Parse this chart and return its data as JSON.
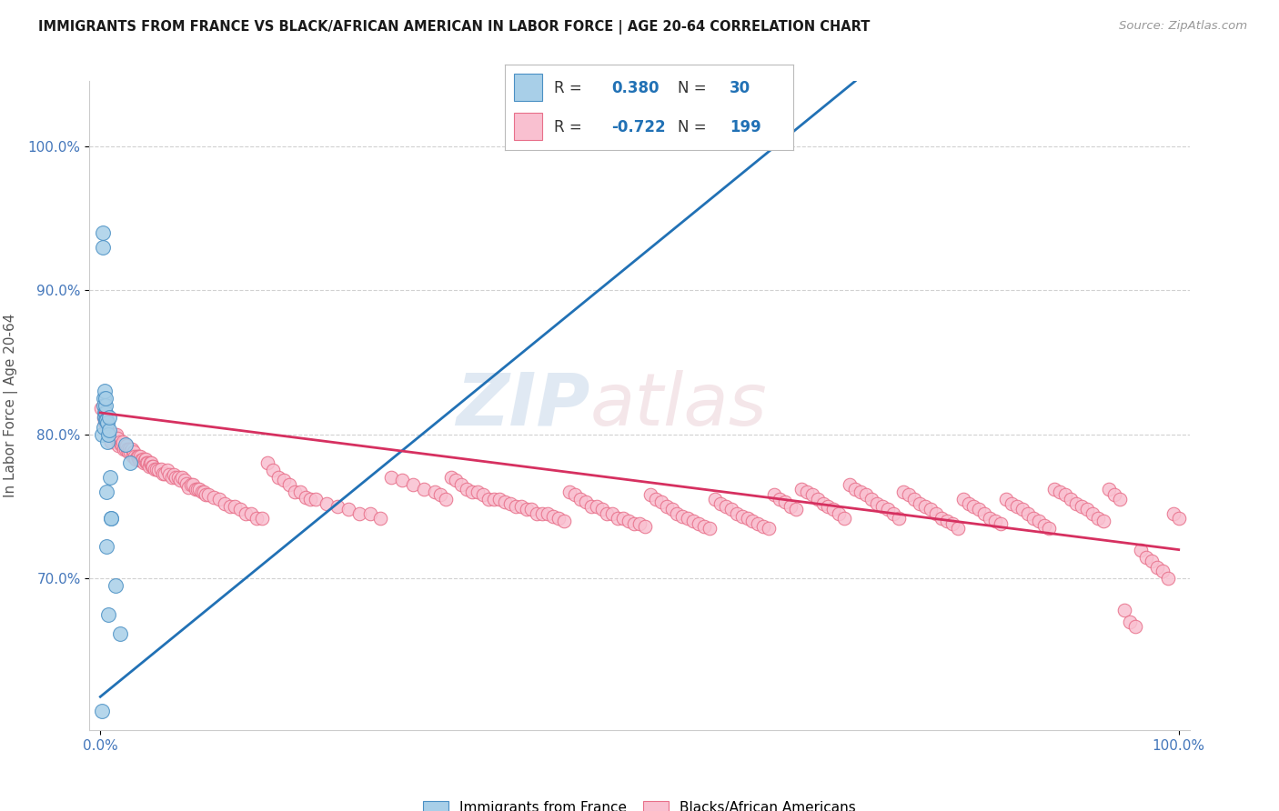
{
  "title": "IMMIGRANTS FROM FRANCE VS BLACK/AFRICAN AMERICAN IN LABOR FORCE | AGE 20-64 CORRELATION CHART",
  "source": "Source: ZipAtlas.com",
  "ylabel": "In Labor Force | Age 20-64",
  "xlim": [
    -0.01,
    1.01
  ],
  "ylim": [
    0.595,
    1.045
  ],
  "yticks": [
    0.7,
    0.8,
    0.9,
    1.0
  ],
  "ytick_labels": [
    "70.0%",
    "80.0%",
    "90.0%",
    "100.0%"
  ],
  "xticks": [
    0.0,
    1.0
  ],
  "xtick_labels": [
    "0.0%",
    "100.0%"
  ],
  "blue_R": 0.38,
  "blue_N": 30,
  "pink_R": -0.722,
  "pink_N": 199,
  "blue_color": "#a8cfe8",
  "pink_color": "#f9c0d0",
  "blue_edge_color": "#4a90c4",
  "pink_edge_color": "#e8708a",
  "blue_line_color": "#2171b5",
  "pink_line_color": "#d63060",
  "background_color": "#ffffff",
  "grid_color": "#cccccc",
  "watermark_zip": "ZIP",
  "watermark_atlas": "atlas",
  "legend_label_blue": "Immigrants from France",
  "legend_label_pink": "Blacks/African Americans",
  "blue_line_x0": 0.0,
  "blue_line_y0": 0.618,
  "blue_line_x1": 0.7,
  "blue_line_y1": 1.045,
  "pink_line_x0": 0.0,
  "pink_line_y0": 0.815,
  "pink_line_x1": 1.0,
  "pink_line_y1": 0.72,
  "blue_scatter": [
    [
      0.0012,
      0.608
    ],
    [
      0.0018,
      0.8
    ],
    [
      0.0022,
      0.93
    ],
    [
      0.0025,
      0.94
    ],
    [
      0.0028,
      0.805
    ],
    [
      0.003,
      0.825
    ],
    [
      0.0035,
      0.82
    ],
    [
      0.0038,
      0.815
    ],
    [
      0.004,
      0.83
    ],
    [
      0.0042,
      0.812
    ],
    [
      0.0045,
      0.815
    ],
    [
      0.0048,
      0.82
    ],
    [
      0.005,
      0.825
    ],
    [
      0.0052,
      0.81
    ],
    [
      0.0055,
      0.76
    ],
    [
      0.0058,
      0.722
    ],
    [
      0.006,
      0.81
    ],
    [
      0.0065,
      0.808
    ],
    [
      0.0068,
      0.795
    ],
    [
      0.007,
      0.8
    ],
    [
      0.0075,
      0.675
    ],
    [
      0.008,
      0.803
    ],
    [
      0.0085,
      0.812
    ],
    [
      0.009,
      0.77
    ],
    [
      0.0095,
      0.742
    ],
    [
      0.01,
      0.742
    ],
    [
      0.014,
      0.695
    ],
    [
      0.018,
      0.662
    ],
    [
      0.023,
      0.793
    ],
    [
      0.028,
      0.78
    ]
  ],
  "pink_scatter": [
    [
      0.001,
      0.818
    ],
    [
      0.003,
      0.812
    ],
    [
      0.004,
      0.808
    ],
    [
      0.005,
      0.81
    ],
    [
      0.006,
      0.805
    ],
    [
      0.007,
      0.802
    ],
    [
      0.008,
      0.8
    ],
    [
      0.009,
      0.8
    ],
    [
      0.01,
      0.795
    ],
    [
      0.011,
      0.8
    ],
    [
      0.012,
      0.8
    ],
    [
      0.013,
      0.8
    ],
    [
      0.014,
      0.797
    ],
    [
      0.015,
      0.8
    ],
    [
      0.016,
      0.797
    ],
    [
      0.017,
      0.792
    ],
    [
      0.018,
      0.795
    ],
    [
      0.019,
      0.793
    ],
    [
      0.02,
      0.793
    ],
    [
      0.021,
      0.795
    ],
    [
      0.022,
      0.79
    ],
    [
      0.023,
      0.79
    ],
    [
      0.024,
      0.792
    ],
    [
      0.025,
      0.79
    ],
    [
      0.026,
      0.788
    ],
    [
      0.027,
      0.79
    ],
    [
      0.028,
      0.788
    ],
    [
      0.029,
      0.79
    ],
    [
      0.03,
      0.785
    ],
    [
      0.031,
      0.788
    ],
    [
      0.032,
      0.785
    ],
    [
      0.033,
      0.783
    ],
    [
      0.034,
      0.785
    ],
    [
      0.035,
      0.785
    ],
    [
      0.036,
      0.782
    ],
    [
      0.037,
      0.785
    ],
    [
      0.038,
      0.782
    ],
    [
      0.039,
      0.783
    ],
    [
      0.04,
      0.78
    ],
    [
      0.041,
      0.782
    ],
    [
      0.042,
      0.783
    ],
    [
      0.043,
      0.78
    ],
    [
      0.044,
      0.78
    ],
    [
      0.045,
      0.778
    ],
    [
      0.046,
      0.78
    ],
    [
      0.047,
      0.78
    ],
    [
      0.048,
      0.778
    ],
    [
      0.049,
      0.778
    ],
    [
      0.05,
      0.776
    ],
    [
      0.052,
      0.776
    ],
    [
      0.054,
      0.775
    ],
    [
      0.056,
      0.776
    ],
    [
      0.058,
      0.773
    ],
    [
      0.06,
      0.773
    ],
    [
      0.062,
      0.775
    ],
    [
      0.064,
      0.772
    ],
    [
      0.066,
      0.77
    ],
    [
      0.068,
      0.772
    ],
    [
      0.07,
      0.77
    ],
    [
      0.072,
      0.77
    ],
    [
      0.074,
      0.768
    ],
    [
      0.076,
      0.77
    ],
    [
      0.078,
      0.768
    ],
    [
      0.08,
      0.766
    ],
    [
      0.082,
      0.763
    ],
    [
      0.084,
      0.765
    ],
    [
      0.086,
      0.765
    ],
    [
      0.088,
      0.762
    ],
    [
      0.09,
      0.762
    ],
    [
      0.092,
      0.762
    ],
    [
      0.094,
      0.76
    ],
    [
      0.096,
      0.76
    ],
    [
      0.098,
      0.758
    ],
    [
      0.1,
      0.758
    ],
    [
      0.105,
      0.756
    ],
    [
      0.11,
      0.755
    ],
    [
      0.115,
      0.752
    ],
    [
      0.12,
      0.75
    ],
    [
      0.125,
      0.75
    ],
    [
      0.13,
      0.748
    ],
    [
      0.135,
      0.745
    ],
    [
      0.14,
      0.745
    ],
    [
      0.145,
      0.742
    ],
    [
      0.15,
      0.742
    ],
    [
      0.155,
      0.78
    ],
    [
      0.16,
      0.775
    ],
    [
      0.165,
      0.77
    ],
    [
      0.17,
      0.768
    ],
    [
      0.175,
      0.765
    ],
    [
      0.18,
      0.76
    ],
    [
      0.185,
      0.76
    ],
    [
      0.19,
      0.756
    ],
    [
      0.195,
      0.755
    ],
    [
      0.2,
      0.755
    ],
    [
      0.21,
      0.752
    ],
    [
      0.22,
      0.75
    ],
    [
      0.23,
      0.748
    ],
    [
      0.24,
      0.745
    ],
    [
      0.25,
      0.745
    ],
    [
      0.26,
      0.742
    ],
    [
      0.27,
      0.77
    ],
    [
      0.28,
      0.768
    ],
    [
      0.29,
      0.765
    ],
    [
      0.3,
      0.762
    ],
    [
      0.31,
      0.76
    ],
    [
      0.315,
      0.758
    ],
    [
      0.32,
      0.755
    ],
    [
      0.325,
      0.77
    ],
    [
      0.33,
      0.768
    ],
    [
      0.335,
      0.765
    ],
    [
      0.34,
      0.762
    ],
    [
      0.345,
      0.76
    ],
    [
      0.35,
      0.76
    ],
    [
      0.355,
      0.758
    ],
    [
      0.36,
      0.755
    ],
    [
      0.365,
      0.755
    ],
    [
      0.37,
      0.755
    ],
    [
      0.375,
      0.753
    ],
    [
      0.38,
      0.752
    ],
    [
      0.385,
      0.75
    ],
    [
      0.39,
      0.75
    ],
    [
      0.395,
      0.748
    ],
    [
      0.4,
      0.748
    ],
    [
      0.405,
      0.745
    ],
    [
      0.41,
      0.745
    ],
    [
      0.415,
      0.745
    ],
    [
      0.42,
      0.743
    ],
    [
      0.425,
      0.742
    ],
    [
      0.43,
      0.74
    ],
    [
      0.435,
      0.76
    ],
    [
      0.44,
      0.758
    ],
    [
      0.445,
      0.755
    ],
    [
      0.45,
      0.753
    ],
    [
      0.455,
      0.75
    ],
    [
      0.46,
      0.75
    ],
    [
      0.465,
      0.748
    ],
    [
      0.47,
      0.745
    ],
    [
      0.475,
      0.745
    ],
    [
      0.48,
      0.742
    ],
    [
      0.485,
      0.742
    ],
    [
      0.49,
      0.74
    ],
    [
      0.495,
      0.738
    ],
    [
      0.5,
      0.738
    ],
    [
      0.505,
      0.736
    ],
    [
      0.51,
      0.758
    ],
    [
      0.515,
      0.755
    ],
    [
      0.52,
      0.753
    ],
    [
      0.525,
      0.75
    ],
    [
      0.53,
      0.748
    ],
    [
      0.535,
      0.745
    ],
    [
      0.54,
      0.743
    ],
    [
      0.545,
      0.742
    ],
    [
      0.55,
      0.74
    ],
    [
      0.555,
      0.738
    ],
    [
      0.56,
      0.736
    ],
    [
      0.565,
      0.735
    ],
    [
      0.57,
      0.755
    ],
    [
      0.575,
      0.752
    ],
    [
      0.58,
      0.75
    ],
    [
      0.585,
      0.748
    ],
    [
      0.59,
      0.745
    ],
    [
      0.595,
      0.743
    ],
    [
      0.6,
      0.742
    ],
    [
      0.605,
      0.74
    ],
    [
      0.61,
      0.738
    ],
    [
      0.615,
      0.736
    ],
    [
      0.62,
      0.735
    ],
    [
      0.625,
      0.758
    ],
    [
      0.63,
      0.755
    ],
    [
      0.635,
      0.753
    ],
    [
      0.64,
      0.75
    ],
    [
      0.645,
      0.748
    ],
    [
      0.65,
      0.762
    ],
    [
      0.655,
      0.76
    ],
    [
      0.66,
      0.758
    ],
    [
      0.665,
      0.755
    ],
    [
      0.67,
      0.752
    ],
    [
      0.675,
      0.75
    ],
    [
      0.68,
      0.748
    ],
    [
      0.685,
      0.745
    ],
    [
      0.69,
      0.742
    ],
    [
      0.695,
      0.765
    ],
    [
      0.7,
      0.762
    ],
    [
      0.705,
      0.76
    ],
    [
      0.71,
      0.758
    ],
    [
      0.715,
      0.755
    ],
    [
      0.72,
      0.752
    ],
    [
      0.725,
      0.75
    ],
    [
      0.73,
      0.748
    ],
    [
      0.735,
      0.745
    ],
    [
      0.74,
      0.742
    ],
    [
      0.745,
      0.76
    ],
    [
      0.75,
      0.758
    ],
    [
      0.755,
      0.755
    ],
    [
      0.76,
      0.752
    ],
    [
      0.765,
      0.75
    ],
    [
      0.77,
      0.748
    ],
    [
      0.775,
      0.745
    ],
    [
      0.78,
      0.742
    ],
    [
      0.785,
      0.74
    ],
    [
      0.79,
      0.738
    ],
    [
      0.795,
      0.735
    ],
    [
      0.8,
      0.755
    ],
    [
      0.805,
      0.752
    ],
    [
      0.81,
      0.75
    ],
    [
      0.815,
      0.748
    ],
    [
      0.82,
      0.745
    ],
    [
      0.825,
      0.742
    ],
    [
      0.83,
      0.74
    ],
    [
      0.835,
      0.738
    ],
    [
      0.84,
      0.755
    ],
    [
      0.845,
      0.752
    ],
    [
      0.85,
      0.75
    ],
    [
      0.855,
      0.748
    ],
    [
      0.86,
      0.745
    ],
    [
      0.865,
      0.742
    ],
    [
      0.87,
      0.74
    ],
    [
      0.875,
      0.737
    ],
    [
      0.88,
      0.735
    ],
    [
      0.885,
      0.762
    ],
    [
      0.89,
      0.76
    ],
    [
      0.895,
      0.758
    ],
    [
      0.9,
      0.755
    ],
    [
      0.905,
      0.752
    ],
    [
      0.91,
      0.75
    ],
    [
      0.915,
      0.748
    ],
    [
      0.92,
      0.745
    ],
    [
      0.925,
      0.742
    ],
    [
      0.93,
      0.74
    ],
    [
      0.935,
      0.762
    ],
    [
      0.94,
      0.758
    ],
    [
      0.945,
      0.755
    ],
    [
      0.95,
      0.678
    ],
    [
      0.955,
      0.67
    ],
    [
      0.96,
      0.667
    ],
    [
      0.965,
      0.72
    ],
    [
      0.97,
      0.715
    ],
    [
      0.975,
      0.712
    ],
    [
      0.98,
      0.708
    ],
    [
      0.985,
      0.705
    ],
    [
      0.99,
      0.7
    ],
    [
      0.995,
      0.745
    ],
    [
      1.0,
      0.742
    ]
  ]
}
